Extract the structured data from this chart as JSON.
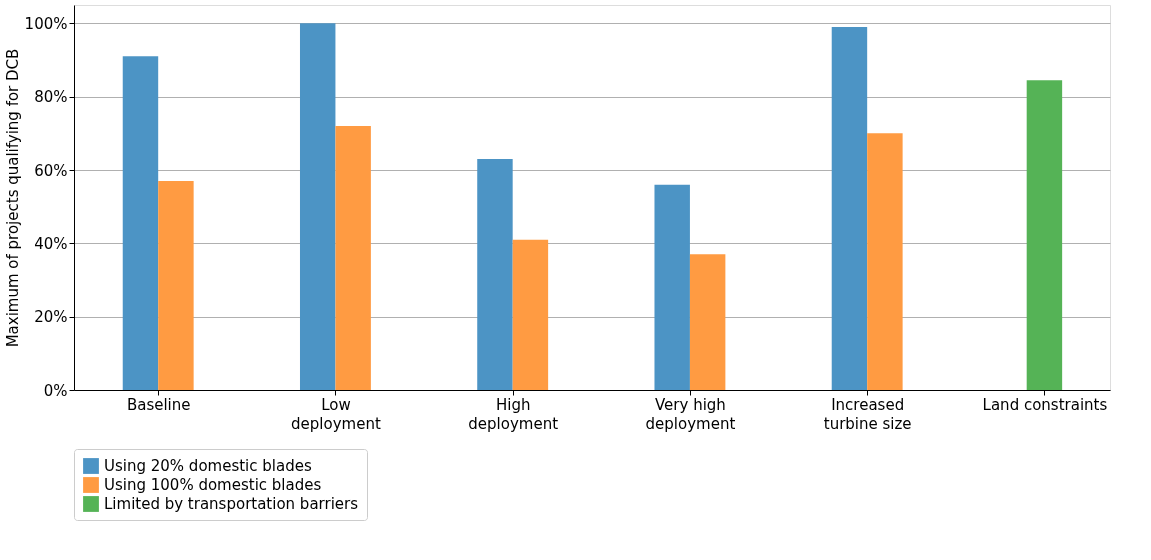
{
  "chart_data": {
    "type": "bar",
    "categories": [
      "Baseline",
      "Low\ndeployment",
      "High\ndeployment",
      "Very high\ndeployment",
      "Increased\nturbine size",
      "Land constraints"
    ],
    "series": [
      {
        "name": "Using 20% domestic blades",
        "color": "#4c94c5",
        "values": [
          91,
          100,
          63,
          56,
          99,
          null
        ]
      },
      {
        "name": "Using 100% domestic blades",
        "color": "#ff9b42",
        "values": [
          57,
          72,
          41,
          37,
          70,
          null
        ]
      },
      {
        "name": "Limited by transportation barriers",
        "color": "#55b356",
        "values": [
          null,
          null,
          null,
          null,
          null,
          84.5
        ]
      }
    ],
    "ylabel": "Maximum of projects qualifying for DCB",
    "ylim": [
      0,
      105
    ],
    "yticks": [
      {
        "value": 0,
        "label": "0%"
      },
      {
        "value": 20,
        "label": "20%"
      },
      {
        "value": 40,
        "label": "40%"
      },
      {
        "value": 60,
        "label": "60%"
      },
      {
        "value": 80,
        "label": "80%"
      },
      {
        "value": 100,
        "label": "100%"
      }
    ],
    "grid": "y",
    "legend": "bottom"
  }
}
